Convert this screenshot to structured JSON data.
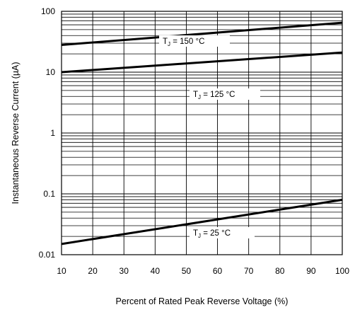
{
  "chart_data": {
    "type": "line",
    "title": "",
    "xlabel": "Percent of Rated Peak Reverse Voltage (%)",
    "ylabel": "Instantaneous Reverse Current (µA)",
    "x_scale": "linear",
    "y_scale": "log",
    "xlim": [
      10,
      100
    ],
    "ylim": [
      0.01,
      100
    ],
    "x_ticks": [
      10,
      20,
      30,
      40,
      50,
      60,
      70,
      80,
      90,
      100
    ],
    "x_tick_labels": [
      "10",
      "20",
      "30",
      "40",
      "50",
      "60",
      "70",
      "80",
      "90",
      "100"
    ],
    "y_ticks": [
      0.01,
      0.1,
      1,
      10,
      100
    ],
    "y_tick_labels": [
      "0.01",
      "0.1",
      "1",
      "10",
      "100"
    ],
    "grid": "on",
    "legend": "none",
    "colors": {
      "line": "#000000",
      "grid": "#000000",
      "background": "#ffffff"
    },
    "series": [
      {
        "label_main": "T",
        "label_sub": "J",
        "label_rest": " = 150 °C",
        "x": [
          10,
          100
        ],
        "y": [
          28,
          65
        ]
      },
      {
        "label_main": "T",
        "label_sub": "J",
        "label_rest": " = 125 °C",
        "x": [
          10,
          100
        ],
        "y": [
          10,
          21
        ]
      },
      {
        "label_main": "T",
        "label_sub": "J",
        "label_rest": " = 25 °C",
        "x": [
          10,
          100
        ],
        "y": [
          0.015,
          0.08
        ]
      }
    ]
  }
}
